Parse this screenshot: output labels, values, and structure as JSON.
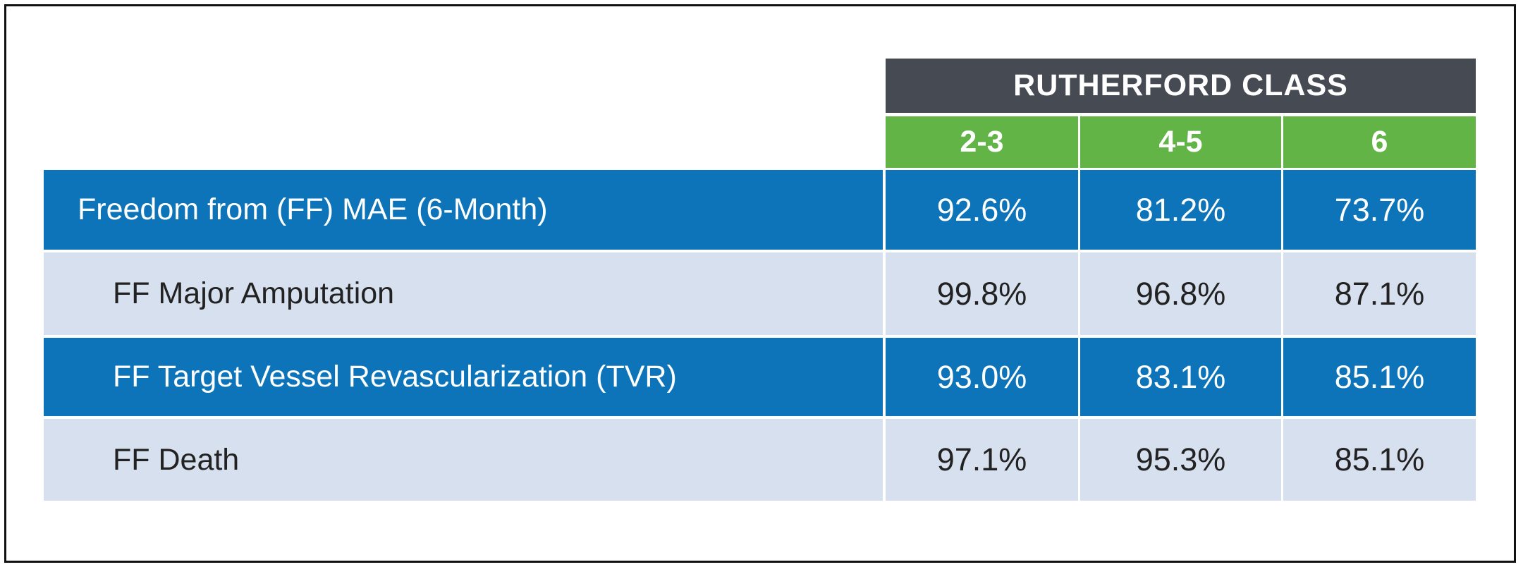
{
  "table": {
    "group_header": "RUTHERFORD CLASS",
    "columns": [
      "2-3",
      "4-5",
      "6"
    ],
    "rows": [
      {
        "label": "Freedom from (FF) MAE (6-Month)",
        "values": [
          "92.6%",
          "81.2%",
          "73.7%"
        ]
      },
      {
        "label": "FF Major Amputation",
        "values": [
          "99.8%",
          "96.8%",
          "87.1%"
        ]
      },
      {
        "label": "FF Target Vessel Revascularization (TVR)",
        "values": [
          "93.0%",
          "83.1%",
          "85.1%"
        ]
      },
      {
        "label": "FF Death",
        "values": [
          "97.1%",
          "95.3%",
          "85.1%"
        ]
      }
    ],
    "colors": {
      "group_header_bg": "#454a53",
      "column_header_bg": "#62b446",
      "dark_row_bg": "#0d74b9",
      "light_row_bg": "#d7e0ee"
    }
  }
}
